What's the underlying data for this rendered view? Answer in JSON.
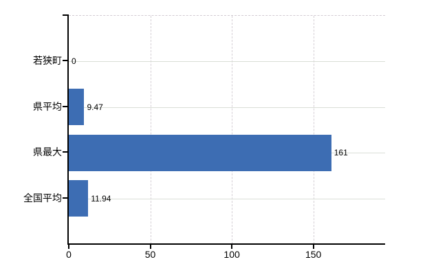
{
  "chart_data": {
    "type": "bar",
    "orientation": "horizontal",
    "title": "",
    "xlabel": "",
    "ylabel": "",
    "categories": [
      "若狭町",
      "県平均",
      "県最大",
      "全国平均"
    ],
    "values": [
      0,
      9.47,
      161,
      11.94
    ],
    "value_labels": [
      "0",
      "9.47",
      "161",
      "11.94"
    ],
    "xlim": [
      0,
      194
    ],
    "x_ticks": [
      0,
      50,
      100,
      150
    ],
    "x_tick_labels": [
      "0",
      "50",
      "100",
      "150"
    ],
    "grid": {
      "horizontal": "solid",
      "vertical": "dashed",
      "top_border": "dashed"
    },
    "legend": "none",
    "colors": {
      "bar": "#3d6db3",
      "axis": "#000000",
      "grid_horizontal": "#d9ded6",
      "grid_vertical": "#d4ced4",
      "text": "#000000",
      "background": "#ffffff"
    }
  }
}
